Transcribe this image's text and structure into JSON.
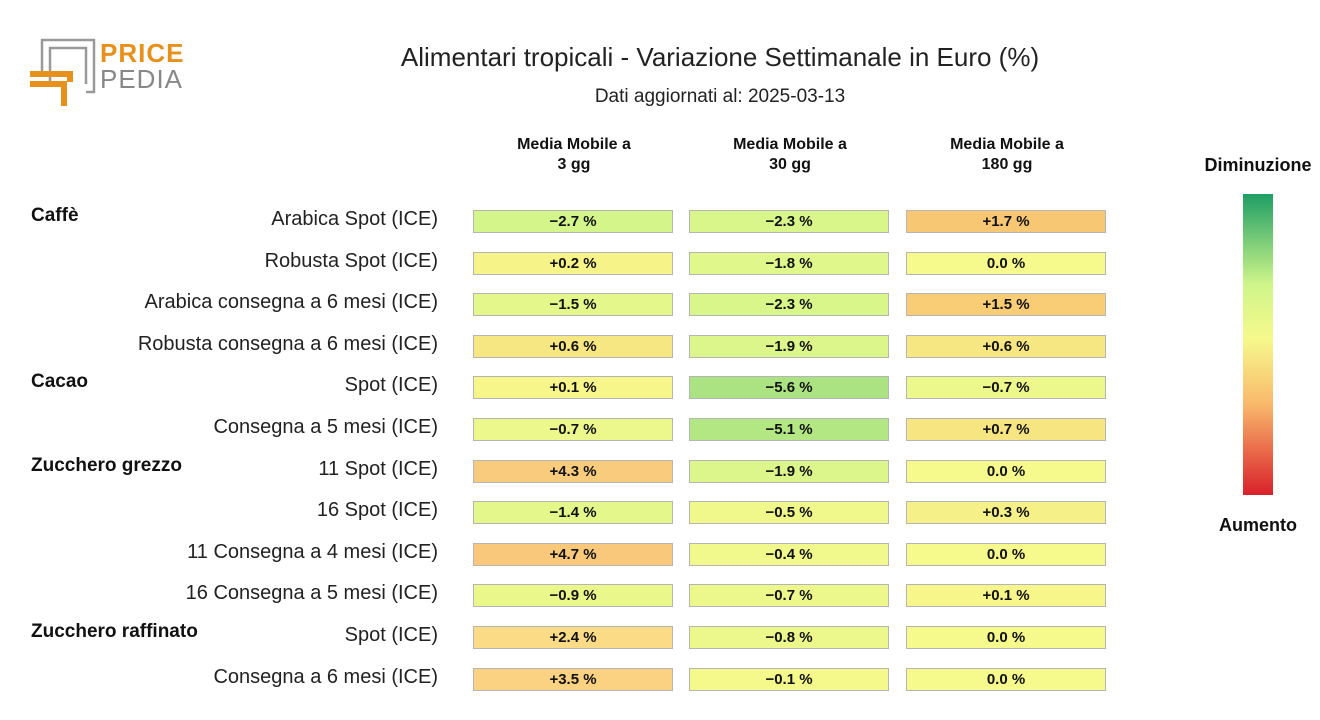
{
  "logo": {
    "line1": "PRICE",
    "line2": "PEDIA"
  },
  "title": "Alimentari tropicali - Variazione Settimanale in Euro (%)",
  "subtitle": "Dati aggiornati al: 2025-03-13",
  "colors": {
    "logo_orange": "#E8901C",
    "logo_gray": "#999999",
    "scale_green": "#1E9E64",
    "scale_light_green": "#CFF58A",
    "scale_yellow": "#F6F98C",
    "scale_orange": "#F9B86B",
    "scale_red": "#D9202A"
  },
  "legend": {
    "top_label": "Diminuzione",
    "bottom_label": "Aumento"
  },
  "chart_data": {
    "type": "table",
    "columns": [
      "Media Mobile a\n3 gg",
      "Media Mobile a\n30 gg",
      "Media Mobile a\n180 gg"
    ],
    "groups": [
      {
        "name": "Caffè",
        "rows": [
          {
            "label": "Arabica Spot (ICE)",
            "values": [
              "−2.7 %",
              "−2.3 %",
              "+1.7 %"
            ],
            "nums": [
              -2.7,
              -2.3,
              1.7
            ]
          },
          {
            "label": "Robusta Spot (ICE)",
            "values": [
              "+0.2 %",
              "−1.8 %",
              "0.0 %"
            ],
            "nums": [
              0.2,
              -1.8,
              0.0
            ]
          },
          {
            "label": "Arabica consegna a 6 mesi (ICE)",
            "values": [
              "−1.5 %",
              "−2.3 %",
              "+1.5 %"
            ],
            "nums": [
              -1.5,
              -2.3,
              1.5
            ]
          },
          {
            "label": "Robusta consegna a 6 mesi (ICE)",
            "values": [
              "+0.6 %",
              "−1.9 %",
              "+0.6 %"
            ],
            "nums": [
              0.6,
              -1.9,
              0.6
            ]
          }
        ]
      },
      {
        "name": "Cacao",
        "rows": [
          {
            "label": "Spot (ICE)",
            "values": [
              "+0.1 %",
              "−5.6 %",
              "−0.7 %"
            ],
            "nums": [
              0.1,
              -5.6,
              -0.7
            ]
          },
          {
            "label": "Consegna a 5 mesi (ICE)",
            "values": [
              "−0.7 %",
              "−5.1 %",
              "+0.7 %"
            ],
            "nums": [
              -0.7,
              -5.1,
              0.7
            ]
          }
        ]
      },
      {
        "name": "Zucchero grezzo",
        "rows": [
          {
            "label": "11 Spot (ICE)",
            "values": [
              "+4.3 %",
              "−1.9 %",
              "0.0 %"
            ],
            "nums": [
              4.3,
              -1.9,
              0.0
            ]
          },
          {
            "label": "16 Spot (ICE)",
            "values": [
              "−1.4 %",
              "−0.5 %",
              "+0.3 %"
            ],
            "nums": [
              -1.4,
              -0.5,
              0.3
            ]
          },
          {
            "label": "11 Consegna a 4 mesi (ICE)",
            "values": [
              "+4.7 %",
              "−0.4 %",
              "0.0 %"
            ],
            "nums": [
              4.7,
              -0.4,
              0.0
            ]
          },
          {
            "label": "16 Consegna a 5 mesi (ICE)",
            "values": [
              "−0.9 %",
              "−0.7 %",
              "+0.1 %"
            ],
            "nums": [
              -0.9,
              -0.7,
              0.1
            ]
          }
        ]
      },
      {
        "name": "Zucchero raffinato",
        "rows": [
          {
            "label": "Spot (ICE)",
            "values": [
              "+2.4 %",
              "−0.8 %",
              "0.0 %"
            ],
            "nums": [
              2.4,
              -0.8,
              0.0
            ]
          },
          {
            "label": "Consegna a 6 mesi (ICE)",
            "values": [
              "+3.5 %",
              "−0.1 %",
              "0.0 %"
            ],
            "nums": [
              3.5,
              -0.1,
              0.0
            ]
          }
        ]
      }
    ]
  }
}
